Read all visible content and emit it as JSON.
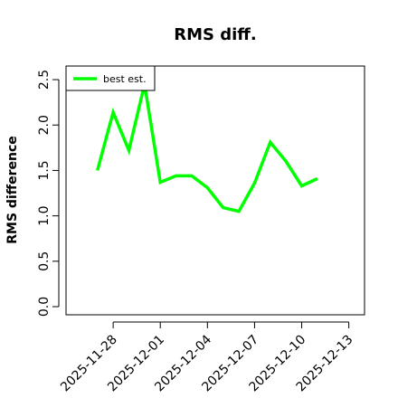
{
  "chart_data": {
    "type": "line",
    "title": "RMS diff.",
    "xlabel": "",
    "ylabel": "RMS difference",
    "xlim": [
      "2025-11-25",
      "2025-12-14"
    ],
    "ylim": [
      0,
      2.6
    ],
    "x_ticks": [
      "2025-11-28",
      "2025-12-01",
      "2025-12-04",
      "2025-12-07",
      "2025-12-10",
      "2025-12-13"
    ],
    "y_ticks": [
      "0.0",
      "0.5",
      "1.0",
      "1.5",
      "2.0",
      "2.5"
    ],
    "grid": false,
    "legend_position": "top-left",
    "series": [
      {
        "name": "best est.",
        "color": "#00ff00",
        "x": [
          "2025-11-27",
          "2025-11-28",
          "2025-11-29",
          "2025-11-30",
          "2025-12-01",
          "2025-12-02",
          "2025-12-03",
          "2025-12-04",
          "2025-12-05",
          "2025-12-06",
          "2025-12-07",
          "2025-12-08",
          "2025-12-09",
          "2025-12-10",
          "2025-12-11"
        ],
        "y": [
          1.5,
          2.14,
          1.72,
          2.45,
          1.37,
          1.44,
          1.44,
          1.31,
          1.09,
          1.05,
          1.36,
          1.81,
          1.6,
          1.33,
          1.41
        ]
      }
    ]
  }
}
